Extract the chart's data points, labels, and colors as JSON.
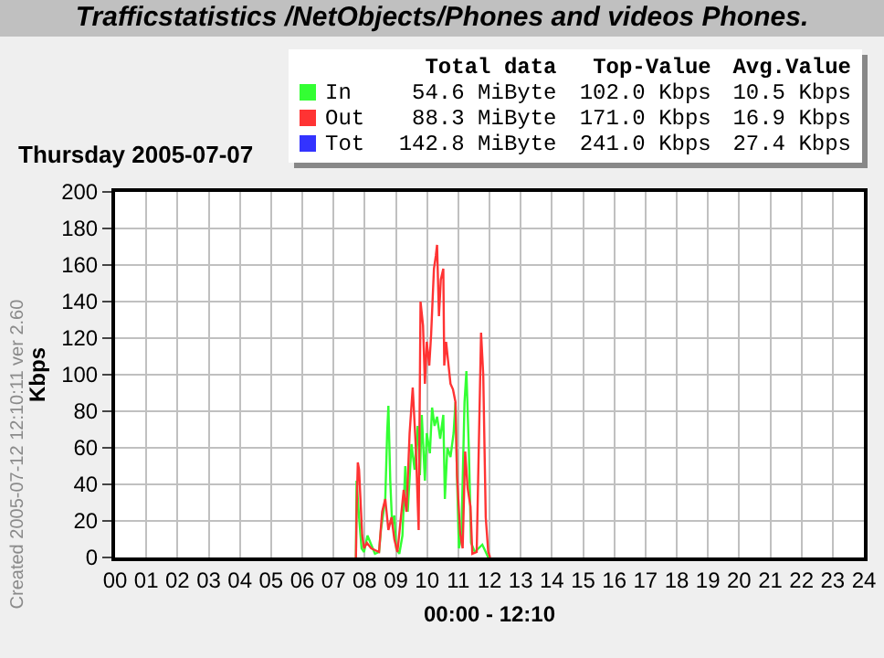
{
  "chart_data": {
    "type": "line",
    "title": "Trafficstatistics  /NetObjects/Phones and videos  Phones.",
    "subtitle": "Thursday 2005-07-07",
    "xlabel": "00:00 - 12:10",
    "ylabel": "Kbps",
    "annotations": [
      "Created 2005-07-12 12:10:11  ver 2.60",
      "Total data",
      "Top-Value",
      "Avg.Value",
      "54.6 MiByte",
      "102.0 Kbps",
      "10.5 Kbps",
      "88.3 MiByte",
      "171.0 Kbps",
      "16.9 Kbps",
      "142.8 MiByte",
      "241.0 Kbps",
      "27.4 Kbps"
    ],
    "series": [
      {
        "name": "In",
        "color": "#33ff33",
        "x": [
          7.72,
          7.74,
          7.82,
          7.9,
          7.98,
          8.09,
          8.21,
          8.33,
          8.46,
          8.52,
          8.66,
          8.72,
          8.76,
          8.82,
          8.88,
          8.95,
          9.01,
          9.11,
          9.21,
          9.3,
          9.38,
          9.5,
          9.6,
          9.7,
          9.77,
          9.83,
          9.93,
          9.99,
          10.09,
          10.16,
          10.24,
          10.32,
          10.42,
          10.52,
          10.57,
          10.65,
          10.75,
          10.85,
          10.91,
          10.96,
          11.02,
          11.1,
          11.2,
          11.26,
          11.34,
          11.41,
          11.53,
          11.65,
          11.77,
          11.88,
          11.96
        ],
        "values": [
          0,
          42,
          22,
          5,
          3,
          12,
          7,
          2,
          3,
          15,
          32,
          68,
          83,
          42,
          18,
          23,
          5,
          2,
          12,
          50,
          25,
          62,
          48,
          72,
          45,
          78,
          42,
          68,
          57,
          82,
          72,
          77,
          65,
          78,
          32,
          60,
          55,
          68,
          85,
          45,
          5,
          12,
          85,
          102,
          58,
          8,
          3,
          5,
          7,
          3,
          0
        ]
      },
      {
        "name": "Out",
        "color": "#ff3333",
        "x": [
          7.72,
          7.74,
          7.78,
          7.82,
          7.92,
          7.98,
          8.07,
          8.21,
          8.46,
          8.56,
          8.66,
          8.76,
          8.86,
          8.95,
          9.05,
          9.25,
          9.34,
          9.44,
          9.54,
          9.64,
          9.73,
          9.79,
          9.87,
          9.93,
          9.99,
          10.07,
          10.13,
          10.22,
          10.28,
          10.32,
          10.38,
          10.44,
          10.52,
          10.55,
          10.61,
          10.67,
          10.75,
          10.83,
          10.91,
          10.96,
          11.06,
          11.14,
          11.22,
          11.3,
          11.39,
          11.45,
          11.59,
          11.73,
          11.8,
          11.88,
          11.96,
          12.02
        ],
        "values": [
          0,
          25,
          52,
          48,
          12,
          5,
          8,
          5,
          3,
          25,
          32,
          15,
          22,
          10,
          3,
          37,
          25,
          68,
          93,
          60,
          15,
          140,
          127,
          95,
          118,
          105,
          122,
          158,
          165,
          171,
          132,
          152,
          158,
          105,
          118,
          108,
          95,
          92,
          85,
          45,
          13,
          5,
          58,
          38,
          28,
          2,
          3,
          123,
          100,
          22,
          3,
          0
        ]
      },
      {
        "name": "Tot",
        "color": "#3333ff"
      }
    ],
    "xlim": [
      0,
      24
    ],
    "xticks": [
      {
        "value": 0,
        "label": "00"
      },
      {
        "value": 1,
        "label": "01"
      },
      {
        "value": 2,
        "label": "02"
      },
      {
        "value": 3,
        "label": "03"
      },
      {
        "value": 4,
        "label": "04"
      },
      {
        "value": 5,
        "label": "05"
      },
      {
        "value": 6,
        "label": "06"
      },
      {
        "value": 7,
        "label": "07"
      },
      {
        "value": 8,
        "label": "08"
      },
      {
        "value": 9,
        "label": "09"
      },
      {
        "value": 10,
        "label": "10"
      },
      {
        "value": 11,
        "label": "11"
      },
      {
        "value": 12,
        "label": "12"
      },
      {
        "value": 13,
        "label": "13"
      },
      {
        "value": 14,
        "label": "14"
      },
      {
        "value": 15,
        "label": "15"
      },
      {
        "value": 16,
        "label": "16"
      },
      {
        "value": 17,
        "label": "17"
      },
      {
        "value": 18,
        "label": "18"
      },
      {
        "value": 19,
        "label": "19"
      },
      {
        "value": 20,
        "label": "20"
      },
      {
        "value": 21,
        "label": "21"
      },
      {
        "value": 22,
        "label": "22"
      },
      {
        "value": 23,
        "label": "23"
      },
      {
        "value": 24,
        "label": "24"
      }
    ],
    "ylim": [
      0,
      200
    ],
    "yticks": [
      0,
      20,
      40,
      60,
      80,
      100,
      120,
      140,
      160,
      180,
      200
    ],
    "grid": true,
    "legend": "top",
    "marker": "none",
    "line_style": "solid"
  }
}
